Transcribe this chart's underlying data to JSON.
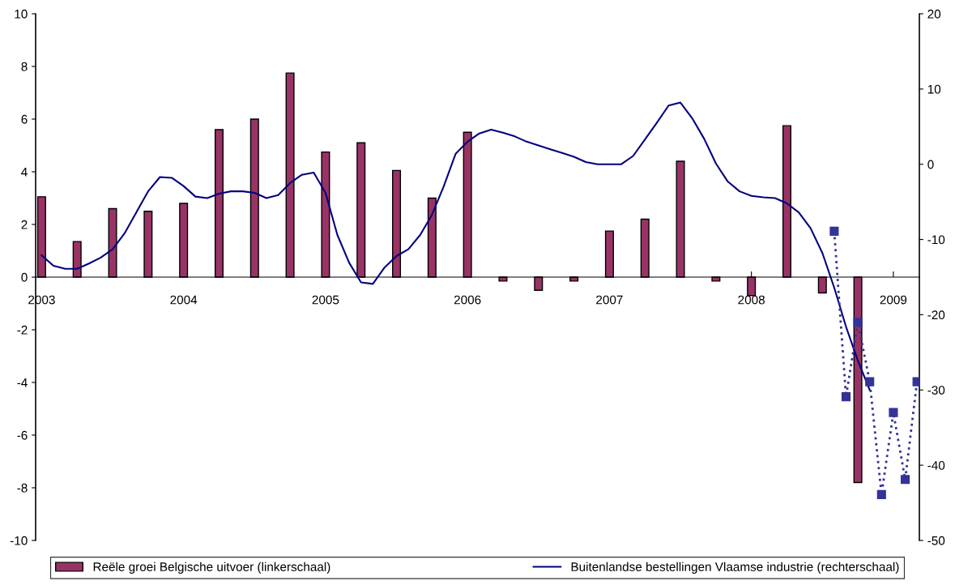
{
  "chart_data": {
    "type": "bar",
    "xlim": [
      "2002-12-16",
      "2009-03-07"
    ],
    "xticks": [
      {
        "value": "2003-01",
        "label": "2003"
      },
      {
        "value": "2004-01",
        "label": "2004"
      },
      {
        "value": "2005-01",
        "label": "2005"
      },
      {
        "value": "2006-01",
        "label": "2006"
      },
      {
        "value": "2007-01",
        "label": "2007"
      },
      {
        "value": "2008-01",
        "label": "2008"
      },
      {
        "value": "2009-01",
        "label": "2009"
      }
    ],
    "ylim": [
      -10,
      10
    ],
    "yticks": [
      -10,
      -8,
      -6,
      -4,
      -2,
      0,
      2,
      4,
      6,
      8,
      10
    ],
    "y2lim": [
      -50,
      20
    ],
    "y2ticks": [
      -50,
      -40,
      -30,
      -20,
      -10,
      0,
      10,
      20
    ],
    "grid": false,
    "legend": "bottom",
    "series": [
      {
        "name": "Reële groei Belgische uitvoer (linkerschaal)",
        "color": "#993366",
        "x": [
          "2003-01",
          "2003-04",
          "2003-07",
          "2003-10",
          "2004-01",
          "2004-04",
          "2004-07",
          "2004-10",
          "2005-01",
          "2005-04",
          "2005-07",
          "2005-10",
          "2006-01",
          "2006-04",
          "2006-07",
          "2006-10",
          "2007-01",
          "2007-04",
          "2007-07",
          "2007-10",
          "2008-01",
          "2008-04",
          "2008-07",
          "2008-10"
        ],
        "values": [
          3.05,
          1.35,
          2.6,
          2.5,
          2.8,
          5.6,
          6.0,
          7.75,
          4.75,
          5.1,
          4.05,
          3.0,
          5.5,
          -0.15,
          -0.5,
          -0.15,
          1.75,
          2.2,
          4.4,
          -0.15,
          -0.7,
          5.75,
          -0.6,
          -7.8
        ]
      },
      {
        "name": "Buitenlandse bestellingen Vlaamse industrie (rechterschaal)",
        "type": "line",
        "axis": "y2",
        "color": "#000080",
        "marker": "none",
        "line_style": "solid",
        "x": [
          "2003-01",
          "2003-02",
          "2003-03",
          "2003-04",
          "2003-05",
          "2003-06",
          "2003-07",
          "2003-08",
          "2003-09",
          "2003-10",
          "2003-11",
          "2003-12",
          "2004-01",
          "2004-02",
          "2004-03",
          "2004-04",
          "2004-05",
          "2004-06",
          "2004-07",
          "2004-08",
          "2004-09",
          "2004-10",
          "2004-11",
          "2004-12",
          "2005-01",
          "2005-02",
          "2005-03",
          "2005-04",
          "2005-05",
          "2005-06",
          "2005-07",
          "2005-08",
          "2005-09",
          "2005-10",
          "2005-11",
          "2005-12",
          "2006-01",
          "2006-02",
          "2006-03",
          "2006-04",
          "2006-05",
          "2006-06",
          "2006-07",
          "2006-08",
          "2006-09",
          "2006-10",
          "2006-11",
          "2006-12",
          "2007-01",
          "2007-02",
          "2007-03",
          "2007-04",
          "2007-05",
          "2007-06",
          "2007-07",
          "2007-08",
          "2007-09",
          "2007-10",
          "2007-11",
          "2007-12",
          "2008-01",
          "2008-02",
          "2008-03",
          "2008-04",
          "2008-05",
          "2008-06",
          "2008-07",
          "2008-08",
          "2008-09",
          "2008-10",
          "2008-11"
        ],
        "values": [
          -12.1,
          -13.5,
          -13.9,
          -13.9,
          -13.2,
          -12.4,
          -11.3,
          -9.2,
          -6.4,
          -3.6,
          -1.7,
          -1.8,
          -2.9,
          -4.3,
          -4.5,
          -3.9,
          -3.6,
          -3.6,
          -3.8,
          -4.5,
          -4.1,
          -2.5,
          -1.4,
          -1.1,
          -3.8,
          -9.4,
          -13.1,
          -15.7,
          -15.9,
          -13.7,
          -12.2,
          -11.3,
          -9.4,
          -6.7,
          -2.9,
          1.4,
          3.0,
          4.1,
          4.6,
          4.2,
          3.7,
          3.0,
          2.5,
          2.0,
          1.5,
          1.0,
          0.3,
          0,
          0,
          0,
          1.1,
          3.3,
          5.5,
          7.8,
          8.2,
          6.1,
          3.4,
          0.1,
          -2.3,
          -3.6,
          -4.2,
          -4.4,
          -4.5,
          -5.2,
          -6.4,
          -8.5,
          -11.8,
          -16.4,
          -21.6,
          -26.1,
          -30.0
        ]
      },
      {
        "type": "line",
        "axis": "y2",
        "color": "#333399",
        "marker": "square",
        "line_style": "dotted",
        "x": [
          "2008-08",
          "2008-09",
          "2008-10",
          "2008-11",
          "2008-12",
          "2009-01",
          "2009-02",
          "2009-03"
        ],
        "values": [
          -8.9,
          -30.9,
          -21.0,
          -28.9,
          -43.9,
          -33.0,
          -41.9,
          -28.9
        ]
      }
    ]
  }
}
